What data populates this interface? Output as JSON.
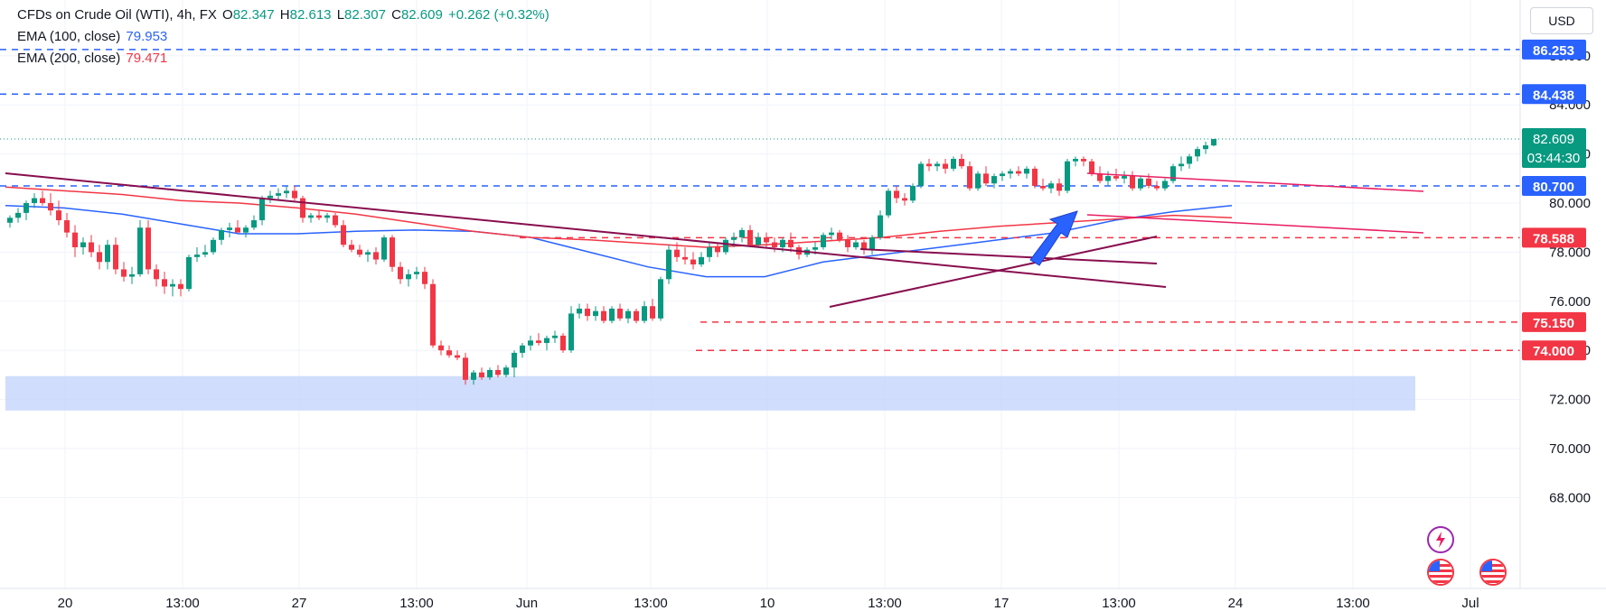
{
  "header": {
    "symbol": "CFDs on Crude Oil (WTI), 4h, FX",
    "open_label": "O",
    "open": "82.347",
    "high_label": "H",
    "high": "82.613",
    "low_label": "L",
    "low": "82.307",
    "close_label": "C",
    "close": "82.609",
    "change": "+0.262 (+0.32%)",
    "ema100_label": "EMA (100, close)",
    "ema100_value": "79.953",
    "ema200_label": "EMA (200, close)",
    "ema200_value": "79.471"
  },
  "currency_button": "USD",
  "icons": {
    "alert": "lightning-icon",
    "event1": "us-flag-icon",
    "event2": "us-flag-icon"
  },
  "colors": {
    "up": "#089981",
    "down": "#f23645",
    "ema100": "#2962ff",
    "ema200": "#f23645",
    "resistance": "#2962ff",
    "support": "#f23645",
    "trendline": "#880e4f",
    "channel": "#e91e63",
    "zone": "#c8d7fb"
  },
  "chart_data": {
    "type": "candlestick",
    "ylim": [
      67.0,
      87.5
    ],
    "yticks": [
      "68.000",
      "70.000",
      "72.000",
      "74.000",
      "76.000",
      "78.000",
      "80.000",
      "82.000",
      "84.000",
      "86.000"
    ],
    "xticks": [
      "20",
      "13:00",
      "27",
      "13:00",
      "Jun",
      "13:00",
      "10",
      "13:00",
      "17",
      "13:00",
      "24",
      "13:00",
      "Jul"
    ],
    "last_price": "82.609",
    "countdown": "03:44:30",
    "levels": [
      {
        "price": 86.253,
        "label": "86.253",
        "style": "resistance"
      },
      {
        "price": 84.438,
        "label": "84.438",
        "style": "resistance"
      },
      {
        "price": 80.7,
        "label": "80.700",
        "style": "resistance"
      },
      {
        "price": 78.588,
        "label": "78.588",
        "style": "support"
      },
      {
        "price": 75.15,
        "label": "75.150",
        "style": "support"
      },
      {
        "price": 74.0,
        "label": "74.000",
        "style": "support"
      }
    ],
    "zone": {
      "from": 71.55,
      "to": 72.95
    },
    "series": [
      {
        "name": "EMA (100, close)",
        "values": [
          79.9,
          79.8,
          79.55,
          79.15,
          78.75,
          78.75,
          78.85,
          78.9,
          78.85,
          78.6,
          78.0,
          77.4,
          77.0,
          77.0,
          77.6,
          77.9,
          78.2,
          78.5,
          78.8,
          79.3,
          79.65,
          79.9
        ]
      },
      {
        "name": "EMA (200, close)",
        "values": [
          80.65,
          80.5,
          80.35,
          80.1,
          80.0,
          79.8,
          79.55,
          79.2,
          78.85,
          78.6,
          78.5,
          78.35,
          78.2,
          78.3,
          78.45,
          78.6,
          78.85,
          79.05,
          79.2,
          79.35,
          79.5,
          79.4
        ]
      }
    ],
    "candles": [
      [
        79.2,
        79.5,
        79.0,
        79.4
      ],
      [
        79.4,
        79.8,
        79.2,
        79.6
      ],
      [
        79.6,
        80.1,
        79.3,
        80.0
      ],
      [
        80.0,
        80.4,
        79.8,
        80.2
      ],
      [
        80.2,
        80.5,
        79.9,
        80.0
      ],
      [
        80.0,
        80.4,
        79.5,
        79.7
      ],
      [
        79.7,
        80.1,
        79.1,
        79.3
      ],
      [
        79.3,
        79.6,
        78.6,
        78.8
      ],
      [
        78.8,
        79.1,
        77.8,
        78.2
      ],
      [
        78.2,
        78.6,
        77.9,
        78.4
      ],
      [
        78.4,
        78.7,
        77.8,
        78.0
      ],
      [
        78.0,
        78.3,
        77.3,
        77.6
      ],
      [
        77.6,
        78.5,
        77.3,
        78.3
      ],
      [
        78.3,
        78.6,
        77.1,
        77.3
      ],
      [
        77.3,
        77.6,
        76.8,
        77.0
      ],
      [
        77.0,
        77.4,
        76.7,
        77.1
      ],
      [
        77.1,
        79.3,
        77.0,
        79.0
      ],
      [
        79.0,
        79.3,
        77.1,
        77.3
      ],
      [
        77.3,
        77.5,
        76.6,
        76.9
      ],
      [
        76.9,
        77.2,
        76.3,
        76.6
      ],
      [
        76.6,
        76.9,
        76.2,
        76.7
      ],
      [
        76.7,
        76.9,
        76.2,
        76.5
      ],
      [
        76.5,
        77.9,
        76.4,
        77.8
      ],
      [
        77.8,
        78.2,
        77.6,
        77.9
      ],
      [
        77.9,
        78.3,
        77.8,
        78.0
      ],
      [
        78.0,
        78.6,
        77.9,
        78.5
      ],
      [
        78.5,
        79.0,
        78.3,
        78.9
      ],
      [
        78.9,
        79.2,
        78.6,
        79.0
      ],
      [
        79.0,
        79.3,
        78.8,
        78.8
      ],
      [
        78.8,
        79.1,
        78.6,
        79.0
      ],
      [
        79.0,
        79.5,
        78.9,
        79.3
      ],
      [
        79.3,
        80.3,
        79.1,
        80.2
      ],
      [
        80.2,
        80.5,
        80.0,
        80.3
      ],
      [
        80.3,
        80.6,
        80.1,
        80.4
      ],
      [
        80.4,
        80.7,
        80.2,
        80.5
      ],
      [
        80.5,
        80.7,
        80.1,
        80.2
      ],
      [
        80.2,
        80.3,
        79.2,
        79.4
      ],
      [
        79.4,
        79.6,
        79.2,
        79.5
      ],
      [
        79.5,
        79.7,
        79.3,
        79.4
      ],
      [
        79.4,
        79.6,
        79.2,
        79.5
      ],
      [
        79.5,
        79.6,
        79.0,
        79.1
      ],
      [
        79.1,
        79.3,
        78.2,
        78.3
      ],
      [
        78.3,
        78.5,
        78.0,
        78.1
      ],
      [
        78.1,
        78.3,
        77.8,
        77.9
      ],
      [
        77.9,
        78.1,
        77.6,
        78.0
      ],
      [
        78.0,
        78.2,
        77.5,
        77.7
      ],
      [
        77.7,
        78.7,
        77.6,
        78.6
      ],
      [
        78.6,
        78.7,
        77.2,
        77.4
      ],
      [
        77.4,
        77.6,
        76.7,
        76.9
      ],
      [
        76.9,
        77.3,
        76.6,
        77.1
      ],
      [
        77.1,
        77.4,
        76.9,
        77.2
      ],
      [
        77.2,
        77.4,
        76.5,
        76.7
      ],
      [
        76.7,
        76.9,
        74.1,
        74.2
      ],
      [
        74.2,
        74.4,
        73.8,
        74.0
      ],
      [
        74.0,
        74.2,
        73.7,
        73.8
      ],
      [
        73.8,
        74.0,
        73.6,
        73.7
      ],
      [
        73.7,
        73.9,
        72.6,
        72.8
      ],
      [
        72.8,
        73.2,
        72.6,
        73.1
      ],
      [
        73.1,
        73.3,
        72.8,
        72.9
      ],
      [
        72.9,
        73.3,
        72.8,
        73.2
      ],
      [
        73.2,
        73.4,
        72.9,
        73.0
      ],
      [
        73.0,
        73.4,
        72.9,
        73.3
      ],
      [
        73.3,
        74.0,
        72.9,
        73.9
      ],
      [
        73.9,
        74.3,
        73.7,
        74.2
      ],
      [
        74.2,
        74.6,
        74.0,
        74.4
      ],
      [
        74.4,
        74.7,
        74.2,
        74.3
      ],
      [
        74.3,
        74.6,
        74.0,
        74.5
      ],
      [
        74.5,
        74.8,
        74.3,
        74.6
      ],
      [
        74.6,
        74.7,
        73.9,
        74.0
      ],
      [
        74.0,
        75.8,
        73.9,
        75.5
      ],
      [
        75.5,
        75.9,
        75.3,
        75.7
      ],
      [
        75.7,
        75.9,
        75.2,
        75.4
      ],
      [
        75.4,
        75.8,
        75.2,
        75.6
      ],
      [
        75.6,
        75.8,
        75.1,
        75.2
      ],
      [
        75.2,
        75.8,
        75.1,
        75.7
      ],
      [
        75.7,
        75.9,
        75.2,
        75.3
      ],
      [
        75.3,
        75.7,
        75.1,
        75.6
      ],
      [
        75.6,
        75.7,
        75.1,
        75.2
      ],
      [
        75.2,
        76.0,
        75.1,
        75.8
      ],
      [
        75.8,
        76.1,
        75.2,
        75.3
      ],
      [
        75.3,
        77.0,
        75.2,
        76.9
      ],
      [
        76.9,
        78.3,
        76.7,
        78.1
      ],
      [
        78.1,
        78.4,
        77.6,
        77.8
      ],
      [
        77.8,
        78.2,
        77.5,
        77.7
      ],
      [
        77.7,
        78.0,
        77.3,
        77.5
      ],
      [
        77.5,
        78.0,
        77.4,
        77.8
      ],
      [
        77.8,
        78.4,
        77.6,
        78.2
      ],
      [
        78.2,
        78.4,
        77.8,
        78.0
      ],
      [
        78.0,
        78.6,
        77.9,
        78.5
      ],
      [
        78.5,
        78.8,
        78.2,
        78.6
      ],
      [
        78.6,
        79.0,
        78.4,
        78.9
      ],
      [
        78.9,
        79.1,
        78.2,
        78.3
      ],
      [
        78.3,
        78.8,
        78.2,
        78.6
      ],
      [
        78.6,
        78.8,
        78.2,
        78.4
      ],
      [
        78.4,
        78.6,
        78.0,
        78.2
      ],
      [
        78.2,
        78.6,
        78.0,
        78.5
      ],
      [
        78.5,
        78.8,
        78.0,
        78.2
      ],
      [
        78.2,
        78.3,
        77.7,
        77.9
      ],
      [
        77.9,
        78.2,
        77.8,
        78.1
      ],
      [
        78.1,
        78.4,
        77.9,
        78.2
      ],
      [
        78.2,
        78.8,
        78.1,
        78.7
      ],
      [
        78.7,
        79.0,
        78.5,
        78.8
      ],
      [
        78.8,
        78.9,
        78.4,
        78.5
      ],
      [
        78.5,
        78.7,
        78.0,
        78.2
      ],
      [
        78.2,
        78.5,
        78.1,
        78.4
      ],
      [
        78.4,
        78.5,
        77.9,
        78.1
      ],
      [
        78.1,
        78.7,
        77.9,
        78.6
      ],
      [
        78.6,
        79.7,
        78.5,
        79.5
      ],
      [
        79.5,
        80.6,
        79.4,
        80.5
      ],
      [
        80.5,
        80.7,
        80.0,
        80.2
      ],
      [
        80.2,
        80.4,
        79.9,
        80.1
      ],
      [
        80.1,
        80.8,
        80.0,
        80.7
      ],
      [
        80.7,
        81.7,
        80.6,
        81.6
      ],
      [
        81.6,
        81.8,
        81.3,
        81.5
      ],
      [
        81.5,
        81.7,
        81.3,
        81.6
      ],
      [
        81.6,
        81.8,
        81.2,
        81.4
      ],
      [
        81.4,
        81.9,
        81.3,
        81.8
      ],
      [
        81.8,
        82.0,
        81.4,
        81.5
      ],
      [
        81.5,
        81.7,
        80.5,
        80.6
      ],
      [
        80.6,
        81.3,
        80.5,
        81.2
      ],
      [
        81.2,
        81.5,
        80.7,
        80.8
      ],
      [
        80.8,
        81.2,
        80.6,
        81.1
      ],
      [
        81.1,
        81.3,
        80.9,
        81.2
      ],
      [
        81.2,
        81.4,
        81.0,
        81.3
      ],
      [
        81.3,
        81.5,
        81.1,
        81.2
      ],
      [
        81.2,
        81.5,
        81.0,
        81.4
      ],
      [
        81.4,
        81.5,
        80.6,
        80.7
      ],
      [
        80.7,
        81.0,
        80.5,
        80.6
      ],
      [
        80.6,
        80.9,
        80.4,
        80.8
      ],
      [
        80.8,
        81.0,
        80.3,
        80.5
      ],
      [
        80.5,
        81.8,
        80.4,
        81.7
      ],
      [
        81.7,
        81.9,
        81.5,
        81.8
      ],
      [
        81.8,
        81.9,
        81.5,
        81.7
      ],
      [
        81.7,
        81.8,
        81.1,
        81.2
      ],
      [
        81.2,
        81.5,
        80.8,
        80.9
      ],
      [
        80.9,
        81.3,
        80.7,
        81.1
      ],
      [
        81.1,
        81.4,
        80.9,
        81.0
      ],
      [
        81.0,
        81.3,
        80.8,
        81.1
      ],
      [
        81.1,
        81.3,
        80.5,
        80.6
      ],
      [
        80.6,
        81.1,
        80.5,
        81.0
      ],
      [
        81.0,
        81.2,
        80.6,
        80.7
      ],
      [
        80.7,
        80.9,
        80.5,
        80.6
      ],
      [
        80.6,
        81.0,
        80.5,
        80.9
      ],
      [
        80.9,
        81.6,
        80.8,
        81.5
      ],
      [
        81.5,
        81.9,
        81.3,
        81.6
      ],
      [
        81.6,
        82.0,
        81.4,
        81.9
      ],
      [
        81.9,
        82.3,
        81.7,
        82.2
      ],
      [
        82.2,
        82.5,
        82.0,
        82.35
      ],
      [
        82.347,
        82.613,
        82.307,
        82.609
      ]
    ]
  }
}
